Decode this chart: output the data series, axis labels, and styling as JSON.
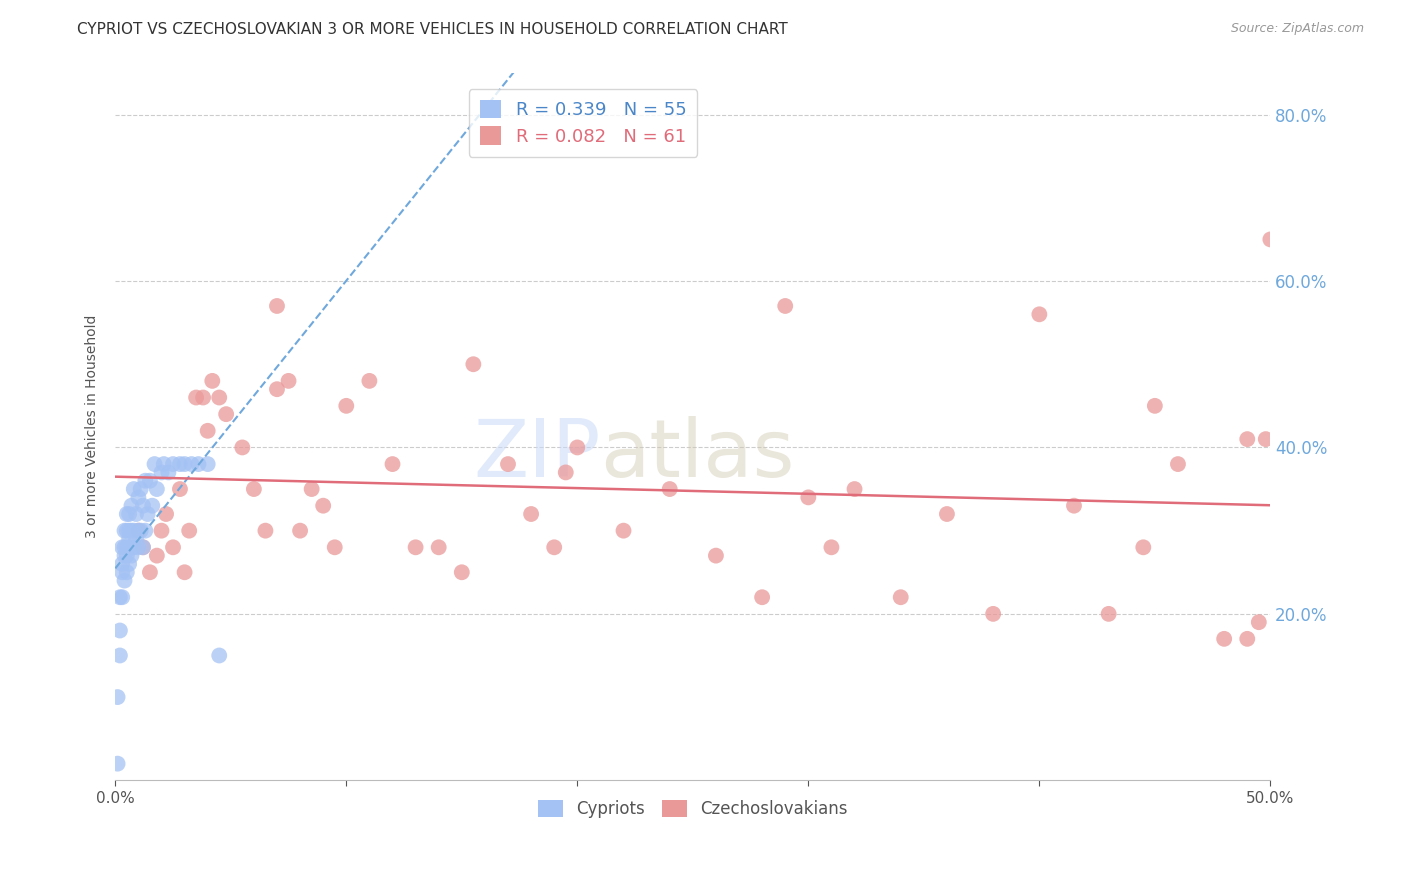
{
  "title": "CYPRIOT VS CZECHOSLOVAKIAN 3 OR MORE VEHICLES IN HOUSEHOLD CORRELATION CHART",
  "source": "Source: ZipAtlas.com",
  "ylabel": "3 or more Vehicles in Household",
  "watermark_zip": "ZIP",
  "watermark_atlas": "atlas",
  "xmin": 0.0,
  "xmax": 0.5,
  "ymin": 0.0,
  "ymax": 0.85,
  "xticks": [
    0.0,
    0.1,
    0.2,
    0.3,
    0.4,
    0.5
  ],
  "xtick_labels": [
    "0.0%",
    "",
    "",
    "",
    "",
    "50.0%"
  ],
  "yticks": [
    0.2,
    0.4,
    0.6,
    0.8
  ],
  "ytick_labels": [
    "20.0%",
    "40.0%",
    "60.0%",
    "80.0%"
  ],
  "legend1_label": "R = 0.339   N = 55",
  "legend2_label": "R = 0.082   N = 61",
  "scatter1_color": "#a4c2f4",
  "scatter2_color": "#ea9999",
  "line1_color": "#6fa8dc",
  "line2_color": "#e06c7a",
  "grid_color": "#cccccc",
  "right_tick_color": "#6fa8dc",
  "cypriot_x": [
    0.001,
    0.001,
    0.002,
    0.002,
    0.002,
    0.003,
    0.003,
    0.003,
    0.003,
    0.004,
    0.004,
    0.004,
    0.004,
    0.005,
    0.005,
    0.005,
    0.005,
    0.005,
    0.006,
    0.006,
    0.006,
    0.006,
    0.006,
    0.007,
    0.007,
    0.007,
    0.008,
    0.008,
    0.008,
    0.009,
    0.009,
    0.01,
    0.01,
    0.01,
    0.011,
    0.011,
    0.012,
    0.012,
    0.013,
    0.013,
    0.014,
    0.015,
    0.016,
    0.017,
    0.018,
    0.02,
    0.021,
    0.023,
    0.025,
    0.028,
    0.03,
    0.033,
    0.036,
    0.04,
    0.045
  ],
  "cypriot_y": [
    0.02,
    0.1,
    0.15,
    0.18,
    0.22,
    0.22,
    0.25,
    0.26,
    0.28,
    0.24,
    0.27,
    0.28,
    0.3,
    0.25,
    0.27,
    0.28,
    0.3,
    0.32,
    0.26,
    0.28,
    0.29,
    0.3,
    0.32,
    0.27,
    0.3,
    0.33,
    0.28,
    0.3,
    0.35,
    0.29,
    0.32,
    0.28,
    0.3,
    0.34,
    0.3,
    0.35,
    0.28,
    0.33,
    0.3,
    0.36,
    0.32,
    0.36,
    0.33,
    0.38,
    0.35,
    0.37,
    0.38,
    0.37,
    0.38,
    0.38,
    0.38,
    0.38,
    0.38,
    0.38,
    0.15
  ],
  "czech_x": [
    0.01,
    0.012,
    0.015,
    0.018,
    0.02,
    0.022,
    0.025,
    0.028,
    0.03,
    0.032,
    0.035,
    0.038,
    0.04,
    0.042,
    0.045,
    0.048,
    0.055,
    0.06,
    0.065,
    0.07,
    0.075,
    0.08,
    0.085,
    0.09,
    0.095,
    0.1,
    0.11,
    0.12,
    0.13,
    0.14,
    0.15,
    0.155,
    0.17,
    0.18,
    0.19,
    0.195,
    0.2,
    0.22,
    0.24,
    0.26,
    0.28,
    0.29,
    0.3,
    0.31,
    0.32,
    0.34,
    0.36,
    0.38,
    0.4,
    0.415,
    0.43,
    0.445,
    0.45,
    0.46,
    0.48,
    0.49,
    0.49,
    0.495,
    0.498,
    0.5,
    0.07
  ],
  "czech_y": [
    0.3,
    0.28,
    0.25,
    0.27,
    0.3,
    0.32,
    0.28,
    0.35,
    0.25,
    0.3,
    0.46,
    0.46,
    0.42,
    0.48,
    0.46,
    0.44,
    0.4,
    0.35,
    0.3,
    0.47,
    0.48,
    0.3,
    0.35,
    0.33,
    0.28,
    0.45,
    0.48,
    0.38,
    0.28,
    0.28,
    0.25,
    0.5,
    0.38,
    0.32,
    0.28,
    0.37,
    0.4,
    0.3,
    0.35,
    0.27,
    0.22,
    0.57,
    0.34,
    0.28,
    0.35,
    0.22,
    0.32,
    0.2,
    0.56,
    0.33,
    0.2,
    0.28,
    0.45,
    0.38,
    0.17,
    0.41,
    0.17,
    0.19,
    0.41,
    0.65,
    0.57
  ]
}
